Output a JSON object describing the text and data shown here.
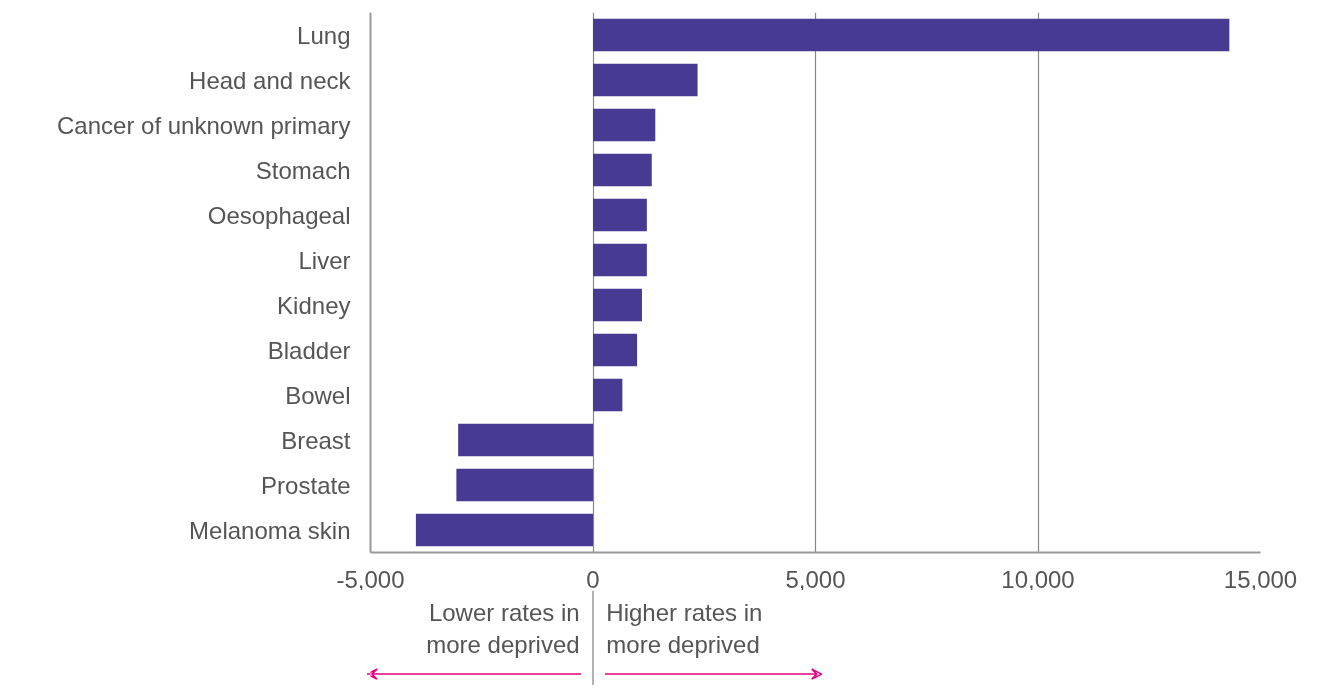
{
  "chart_data": {
    "type": "bar",
    "orientation": "horizontal",
    "categories": [
      "Lung",
      "Head and neck",
      "Cancer of unknown primary",
      "Stomach",
      "Oesophageal",
      "Liver",
      "Kidney",
      "Bladder",
      "Bowel",
      "Breast",
      "Prostate",
      "Melanoma skin"
    ],
    "values": [
      14300,
      2350,
      1400,
      1320,
      1210,
      1210,
      1100,
      990,
      660,
      -3030,
      -3070,
      -3980
    ],
    "color": "#463a93",
    "xlim": [
      -5000,
      15000
    ],
    "xticks": [
      {
        "value": -5000,
        "label": "-5,000"
      },
      0,
      {
        "value": 5000,
        "label": "5,000"
      },
      {
        "value": 10000,
        "label": "10,000"
      },
      {
        "value": 15000,
        "label": "15,000"
      }
    ],
    "grid": "x",
    "annotations": [
      "Lower rates in\nmore deprived",
      "Higher rates in\nmore deprived"
    ]
  }
}
